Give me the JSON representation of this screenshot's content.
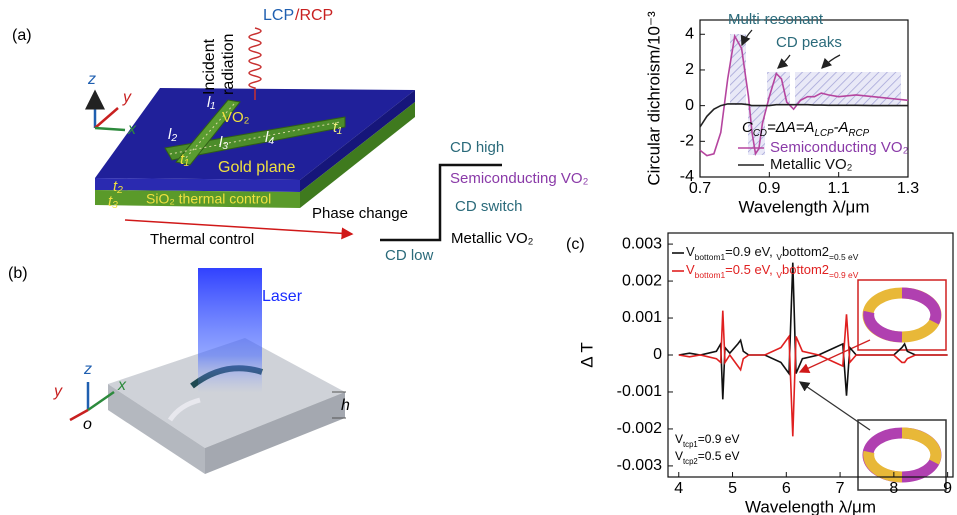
{
  "panel_labels": [
    "(a)",
    "(b)",
    "(c)"
  ],
  "diagram_a": {
    "incident": [
      "Incident",
      "radiation"
    ],
    "lcp": "LCP",
    "rcp": "/RCP",
    "axes": [
      "z",
      "y",
      "x"
    ],
    "parts": {
      "l1": "l₁",
      "vo2": "VO₂",
      "l2": "l₂",
      "l3": "l₃",
      "l4": "l₄",
      "t1a": "t₁",
      "t1b": "t₁",
      "gold": "Gold plane",
      "t2": "t₂",
      "t3": "t₃",
      "sio2": "SiO₂ thermal control"
    },
    "thermal": "Thermal control",
    "phase": "Phase change",
    "cd_high": "CD high",
    "semi": "Semiconducting VO₂",
    "cd_switch": "CD switch",
    "metal": "Metallic VO₂",
    "cd_low": "CD low"
  },
  "diagram_b": {
    "laser": "Laser",
    "axes": [
      "z",
      "y",
      "x",
      "o"
    ],
    "h": "h"
  },
  "chart_data": [
    {
      "type": "line",
      "ylabel": "Circular dichroism/10⁻³",
      "xlabel": "Wavelength λ/μm",
      "annotations": {
        "peaks": [
          "Multi-resonant",
          "CD peaks"
        ],
        "formula": [
          "C",
          "CD",
          "=ΔA=A",
          "LCP",
          "-A",
          "RCP"
        ]
      },
      "x": [
        0.7,
        0.72,
        0.74,
        0.76,
        0.78,
        0.8,
        0.82,
        0.84,
        0.85,
        0.86,
        0.87,
        0.88,
        0.9,
        0.92,
        0.935,
        0.95,
        0.97,
        0.99,
        1.01,
        1.03,
        1.05,
        1.07,
        1.1,
        1.15,
        1.2,
        1.25,
        1.3
      ],
      "series": [
        {
          "name": "Semiconducting VO₂",
          "color": "#b5459f",
          "values": [
            -2.5,
            -2.8,
            -2.7,
            -1.5,
            1.5,
            3.9,
            3.2,
            0.5,
            -1.5,
            -2.7,
            -2.4,
            -1.0,
            0.5,
            1.8,
            1.5,
            0.2,
            -0.2,
            0.3,
            0.5,
            0.5,
            0.7,
            0.6,
            0.5,
            0.6,
            0.5,
            0.4,
            0.3
          ]
        },
        {
          "name": "Metallic VO₂",
          "color": "#222222",
          "values": [
            -1.2,
            -0.6,
            -0.2,
            0,
            0.1,
            0.1,
            0.1,
            0.05,
            0,
            0,
            0,
            0,
            0,
            0.05,
            0.05,
            0.05,
            0.05,
            0.05,
            0.05,
            0.03,
            0.03,
            0.02,
            0.02,
            0.02,
            0,
            0,
            0
          ]
        }
      ],
      "xlim": [
        0.7,
        1.3
      ],
      "xticks": [
        0.7,
        0.9,
        1.1,
        1.3
      ],
      "ylim": [
        -4,
        4.8
      ],
      "yticks": [
        4,
        2,
        0,
        -2,
        -4
      ]
    },
    {
      "type": "line",
      "ylabel": "Δ T",
      "xlabel": "Wavelength λ/μm",
      "annotations": {
        "tcp": [
          [
            "V",
            "tcp1",
            "=0.9 eV"
          ],
          [
            "V",
            "tcp2",
            "=0.5 eV"
          ]
        ]
      },
      "x": [
        4,
        4.2,
        4.4,
        4.7,
        4.78,
        4.82,
        4.86,
        4.95,
        5.1,
        5.15,
        5.2,
        5.3,
        5.6,
        5.9,
        6.05,
        6.12,
        6.18,
        6.3,
        6.6,
        6.9,
        7.05,
        7.12,
        7.18,
        7.3,
        7.6,
        8.0,
        8.15,
        8.2,
        8.25,
        8.4,
        8.7,
        9
      ],
      "series": [
        {
          "name": [
            "V",
            "bottom1",
            "=0.9 eV, ",
            "V",
            "bottom2",
            "=0.5 eV"
          ],
          "color": "#111111",
          "values": [
            0,
            5e-05,
            0,
            0.0001,
            0.0003,
            -0.0012,
            0.0002,
            5e-05,
            0.0003,
            0.0004,
            0.0001,
            0,
            0,
            -0.0002,
            -0.0005,
            0.0025,
            -0.0005,
            -0.0001,
            0,
            0.0002,
            0.0003,
            -0.0011,
            0.0002,
            0,
            0,
            0,
            0.0002,
            0.0003,
            0.0001,
            0,
            0,
            0
          ]
        },
        {
          "name": [
            "V",
            "bottom1",
            "=0.5 eV, ",
            "V",
            "bottom2",
            "=0.9 eV"
          ],
          "color": "#e02020",
          "values": [
            0,
            -5e-05,
            0,
            -0.0001,
            -0.0002,
            0.0012,
            -0.0002,
            0,
            -0.0003,
            -0.0004,
            -0.0001,
            0,
            0,
            0.0002,
            0.0005,
            -0.0022,
            0.0005,
            0.0001,
            0,
            -0.0002,
            -0.0003,
            0.0011,
            -0.0002,
            0,
            0,
            0,
            -0.0002,
            -0.0002,
            -0.0001,
            0,
            0,
            0
          ]
        }
      ],
      "xlim": [
        3.8,
        9.1
      ],
      "xticks": [
        4,
        5,
        6,
        7,
        8,
        9
      ],
      "ylim": [
        -0.0033,
        0.0033
      ],
      "yticks": [
        0.003,
        0.002,
        0.001,
        0,
        -0.001,
        -0.002,
        -0.003
      ]
    }
  ]
}
